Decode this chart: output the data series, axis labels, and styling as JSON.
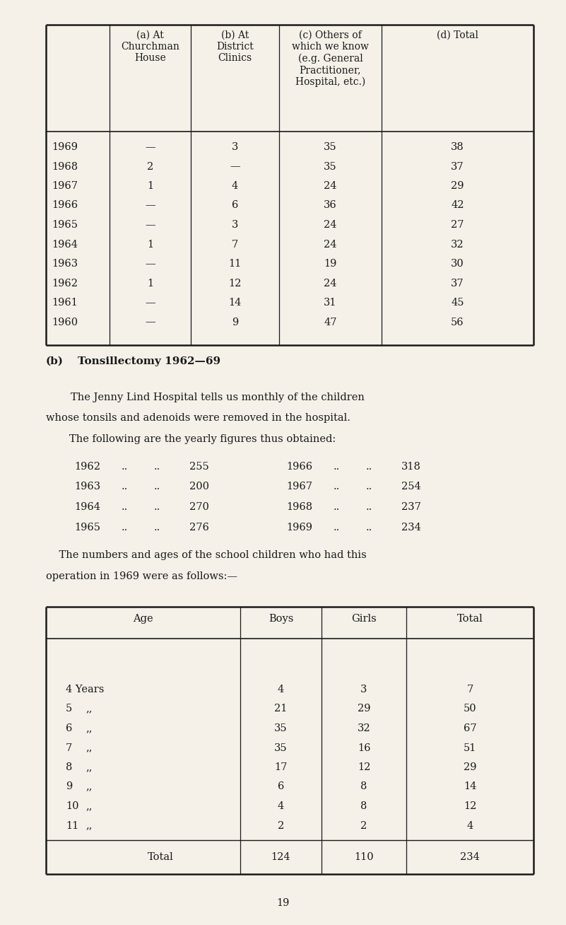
{
  "bg_color": "#f5f0e8",
  "text_color": "#1a1a1a",
  "page_number": "19",
  "table1_headers": [
    "",
    "(a) At\nChurchman\nHouse",
    "(b) At\nDistrict\nClinics",
    "(c) Others of\nwhich we know\n(e.g. General\nPractitioner,\nHospital, etc.)",
    "(d) Total"
  ],
  "table1_rows": [
    [
      "1969",
      "—",
      "3",
      "35",
      "38"
    ],
    [
      "1968",
      "2",
      "—",
      "35",
      "37"
    ],
    [
      "1967",
      "1",
      "4",
      "24",
      "29"
    ],
    [
      "1966",
      "—",
      "6",
      "36",
      "42"
    ],
    [
      "1965",
      "—",
      "3",
      "24",
      "27"
    ],
    [
      "1964",
      "1",
      "7",
      "24",
      "32"
    ],
    [
      "1963",
      "—",
      "11",
      "19",
      "30"
    ],
    [
      "1962",
      "1",
      "12",
      "24",
      "37"
    ],
    [
      "1961",
      "—",
      "14",
      "31",
      "45"
    ],
    [
      "1960",
      "—",
      "9",
      "47",
      "56"
    ]
  ],
  "section_b_label": "(b)",
  "section_b_title": "Tonsillectomy 1962—69",
  "para1_line1": "The Jenny Lind Hospital tells us monthly of the children",
  "para1_line2": "whose tonsils and adenoids were removed in the hospital.",
  "para1_line3": "The following are the yearly figures thus obtained:",
  "yearly_left": [
    [
      "1962",
      "..",
      "..",
      "255"
    ],
    [
      "1963",
      "..",
      "..",
      "200"
    ],
    [
      "1964",
      "..",
      "..",
      "270"
    ],
    [
      "1965",
      "..",
      "..",
      "276"
    ]
  ],
  "yearly_right": [
    [
      "1966",
      "..",
      "..",
      "318"
    ],
    [
      "1967",
      "..",
      "..",
      "254"
    ],
    [
      "1968",
      "..",
      "..",
      "237"
    ],
    [
      "1969",
      "..",
      "..",
      "234"
    ]
  ],
  "para2_line1": "    The numbers and ages of the school children who had this",
  "para2_line2": "operation in 1969 were as follows:—",
  "table2_headers": [
    "Age",
    "Boys",
    "Girls",
    "Total"
  ],
  "table2_age_rows": [
    [
      "4 Years",
      "4",
      "3",
      "7"
    ],
    [
      "5  „„",
      "21",
      "29",
      "50"
    ],
    [
      "6  „„",
      "35",
      "32",
      "67"
    ],
    [
      "7  „„",
      "35",
      "16",
      "51"
    ],
    [
      "8  „„",
      "17",
      "12",
      "29"
    ],
    [
      "9  „„",
      "6",
      "8",
      "14"
    ],
    [
      "10 „„",
      "4",
      "8",
      "12"
    ],
    [
      "11 „„",
      "2",
      "2",
      "4"
    ]
  ],
  "table2_total": [
    "Total",
    "124",
    "110",
    "234"
  ]
}
